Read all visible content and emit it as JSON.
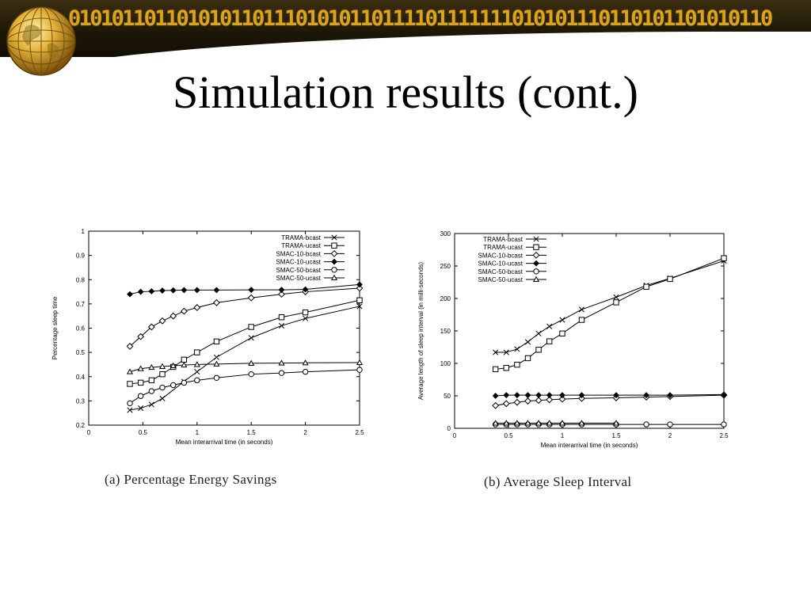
{
  "slide": {
    "binary_banner": "01010110110101011011101010110111101111111010101110110101101010110",
    "title": "Simulation results (cont.)",
    "caption_a": "(a) Percentage Energy Savings",
    "caption_b": "(b) Average Sleep Interval",
    "colors": {
      "banner": "#1f1808",
      "binary": "#d9a520",
      "ink": "#000000"
    },
    "icons": [
      "wireframe-globe-icon"
    ]
  },
  "chart_data": [
    {
      "type": "line",
      "xlabel": "Mean interarrival time (in seconds)",
      "ylabel": "Percentage sleep time",
      "xlim": [
        0,
        2.5
      ],
      "ylim": [
        0.2,
        1
      ],
      "xticks": [
        "0",
        "0.5",
        "1",
        "1.5",
        "2",
        "2.5"
      ],
      "yticks": [
        "0.2",
        "0.3",
        "0.4",
        "0.5",
        "0.6",
        "0.7",
        "0.8",
        "0.9",
        "1"
      ],
      "legend": "top-right",
      "series": [
        {
          "name": "TRAMA-bcast",
          "marker": "x",
          "x": [
            0.38,
            0.48,
            0.58,
            0.68,
            0.88,
            1.0,
            1.18,
            1.5,
            1.78,
            2.0,
            2.5
          ],
          "y": [
            0.262,
            0.27,
            0.285,
            0.31,
            0.38,
            0.42,
            0.48,
            0.56,
            0.61,
            0.64,
            0.69
          ]
        },
        {
          "name": "TRAMA-ucast",
          "marker": "square",
          "x": [
            0.38,
            0.48,
            0.58,
            0.68,
            0.78,
            0.88,
            1.0,
            1.18,
            1.5,
            1.78,
            2.0,
            2.5
          ],
          "y": [
            0.37,
            0.375,
            0.385,
            0.41,
            0.44,
            0.47,
            0.5,
            0.545,
            0.605,
            0.645,
            0.665,
            0.715
          ]
        },
        {
          "name": "SMAC-10-bcast",
          "marker": "diamond",
          "x": [
            0.38,
            0.48,
            0.58,
            0.68,
            0.78,
            0.88,
            1.0,
            1.18,
            1.5,
            1.78,
            2.0,
            2.5
          ],
          "y": [
            0.525,
            0.565,
            0.605,
            0.63,
            0.65,
            0.67,
            0.685,
            0.705,
            0.725,
            0.74,
            0.75,
            0.765
          ]
        },
        {
          "name": "SMAC-10-ucast",
          "marker": "dot",
          "x": [
            0.38,
            0.48,
            0.58,
            0.68,
            0.78,
            0.88,
            1.0,
            1.18,
            1.5,
            1.78,
            2.0,
            2.5
          ],
          "y": [
            0.74,
            0.75,
            0.752,
            0.755,
            0.756,
            0.757,
            0.757,
            0.757,
            0.758,
            0.758,
            0.76,
            0.78
          ]
        },
        {
          "name": "SMAC-50-bcast",
          "marker": "circle",
          "x": [
            0.38,
            0.48,
            0.58,
            0.68,
            0.78,
            0.88,
            1.0,
            1.18,
            1.5,
            1.78,
            2.0,
            2.5
          ],
          "y": [
            0.29,
            0.32,
            0.34,
            0.355,
            0.365,
            0.375,
            0.385,
            0.395,
            0.41,
            0.415,
            0.42,
            0.428
          ]
        },
        {
          "name": "SMAC-50-ucast",
          "marker": "triangle",
          "x": [
            0.38,
            0.48,
            0.58,
            0.68,
            0.78,
            0.88,
            1.0,
            1.18,
            1.5,
            1.78,
            2.0,
            2.5
          ],
          "y": [
            0.42,
            0.433,
            0.438,
            0.442,
            0.445,
            0.448,
            0.45,
            0.452,
            0.455,
            0.456,
            0.457,
            0.458
          ]
        }
      ]
    },
    {
      "type": "line",
      "xlabel": "Mean interarrival time (in seconds)",
      "ylabel": "Average length of sleep interval (in milli-seconds)",
      "xlim": [
        0,
        2.5
      ],
      "ylim": [
        0,
        300
      ],
      "xticks": [
        "0",
        "0.5",
        "1",
        "1.5",
        "2",
        "2.5"
      ],
      "yticks": [
        "0",
        "50",
        "100",
        "150",
        "200",
        "250",
        "300"
      ],
      "legend": "top-left",
      "series": [
        {
          "name": "TRAMA-bcast",
          "marker": "x",
          "x": [
            0.38,
            0.48,
            0.58,
            0.68,
            0.78,
            0.88,
            1.0,
            1.18,
            1.5,
            1.78,
            2.0,
            2.5
          ],
          "y": [
            117,
            117,
            122,
            133,
            146,
            157,
            167,
            183,
            202,
            220,
            231,
            258
          ]
        },
        {
          "name": "TRAMA-ucast",
          "marker": "square",
          "x": [
            0.38,
            0.48,
            0.58,
            0.68,
            0.78,
            0.88,
            1.0,
            1.18,
            1.5,
            1.78,
            2.0,
            2.5
          ],
          "y": [
            91,
            93,
            98,
            108,
            121,
            134,
            146,
            167,
            194,
            218,
            230,
            262
          ]
        },
        {
          "name": "SMAC-10-bcast",
          "marker": "diamond",
          "x": [
            0.38,
            0.48,
            0.58,
            0.68,
            0.78,
            0.88,
            1.0,
            1.18,
            1.5,
            1.78,
            2.0,
            2.5
          ],
          "y": [
            35,
            38,
            40,
            42,
            43,
            44,
            45,
            46,
            47,
            48,
            49,
            51
          ]
        },
        {
          "name": "SMAC-10-ucast",
          "marker": "dot",
          "x": [
            0.38,
            0.48,
            0.58,
            0.68,
            0.78,
            0.88,
            1.0,
            1.18,
            1.5,
            1.78,
            2.0,
            2.5
          ],
          "y": [
            50,
            51,
            51,
            51,
            51,
            51,
            51,
            51,
            51,
            51,
            51,
            52
          ]
        },
        {
          "name": "SMAC-50-bcast",
          "marker": "circle",
          "x": [
            0.38,
            0.48,
            0.58,
            0.68,
            0.78,
            0.88,
            1.0,
            1.18,
            1.5,
            1.78,
            2.0,
            2.5
          ],
          "y": [
            6,
            6,
            6,
            6,
            6,
            6,
            6,
            6,
            6,
            6,
            6,
            6
          ]
        },
        {
          "name": "SMAC-50-ucast",
          "marker": "triangle",
          "x": [
            0.38,
            0.48,
            0.58,
            0.68,
            0.78,
            0.88,
            1.0,
            1.18,
            1.5
          ],
          "y": [
            8,
            8,
            8,
            8,
            8,
            8,
            8,
            8,
            8
          ]
        }
      ]
    }
  ]
}
